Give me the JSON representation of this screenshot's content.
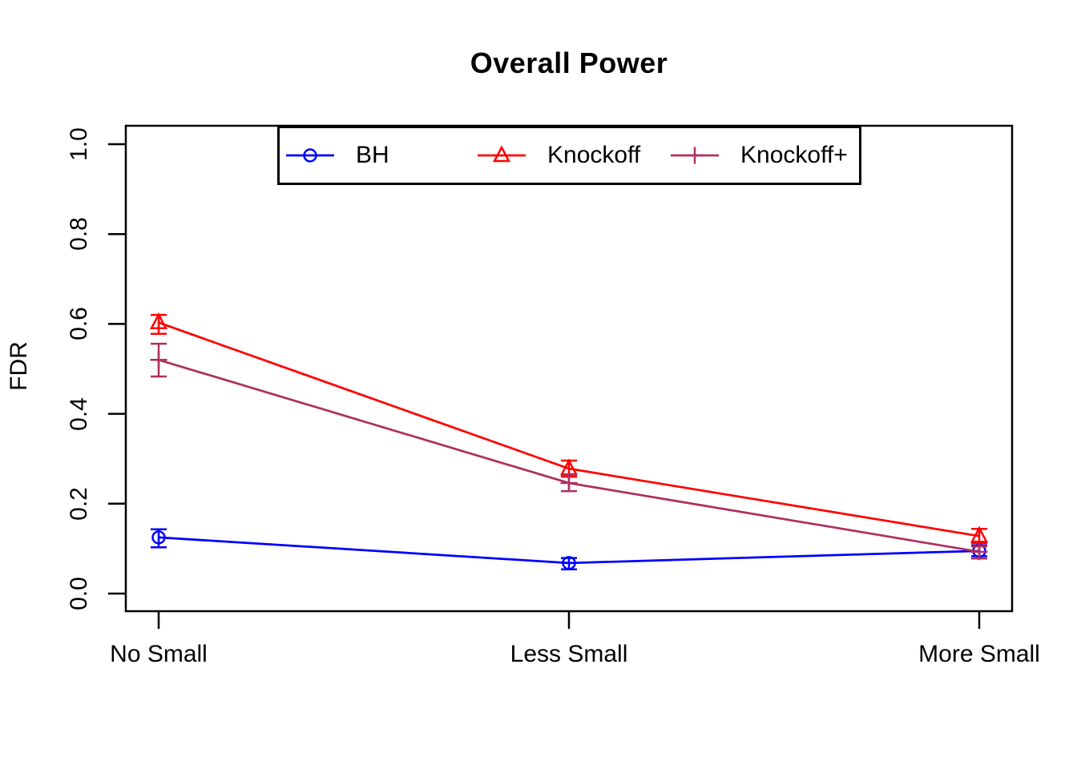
{
  "chart_data": {
    "type": "line",
    "title": "Overall Power",
    "xlabel": "",
    "ylabel": "FDR",
    "categories": [
      "No Small",
      "Less Small",
      "More Small"
    ],
    "y_ticks": [
      "0.0",
      "0.2",
      "0.4",
      "0.6",
      "0.8",
      "1.0"
    ],
    "ylim": [
      0.0,
      1.0
    ],
    "grid": false,
    "legend_position": "top-inside",
    "colors": {
      "bh": "#0000FF",
      "knockoff": "#FF0000",
      "knockoff_plus": "#B03060",
      "axis": "#000000"
    },
    "series": [
      {
        "name": "BH",
        "marker": "circle",
        "color": "#0000FF",
        "values": [
          0.125,
          0.068,
          0.095
        ],
        "err_low": [
          0.103,
          0.054,
          0.083
        ],
        "err_high": [
          0.143,
          0.079,
          0.107
        ]
      },
      {
        "name": "Knockoff",
        "marker": "triangle",
        "color": "#FF0000",
        "values": [
          0.603,
          0.278,
          0.128
        ],
        "err_low": [
          0.578,
          0.26,
          0.112
        ],
        "err_high": [
          0.62,
          0.296,
          0.144
        ]
      },
      {
        "name": "Knockoff+",
        "marker": "plus",
        "color": "#B03060",
        "values": [
          0.52,
          0.246,
          0.093
        ],
        "err_low": [
          0.483,
          0.228,
          0.078
        ],
        "err_high": [
          0.556,
          0.264,
          0.105
        ]
      }
    ]
  }
}
